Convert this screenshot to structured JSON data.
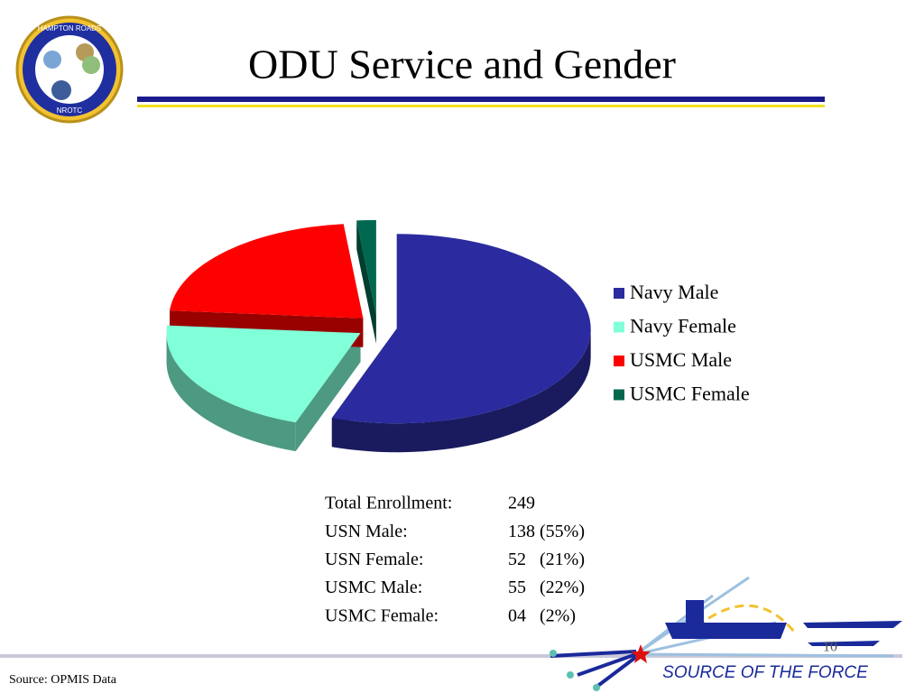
{
  "title": "ODU Service and Gender",
  "logo": {
    "top": "HAMPTON ROADS",
    "bottom": "NROTC"
  },
  "chart_data": {
    "type": "pie",
    "categories": [
      "Navy Male",
      "Navy Female",
      "USMC Male",
      "USMC Female"
    ],
    "values": [
      138,
      52,
      55,
      4
    ],
    "colors": [
      "#2b2b9f",
      "#80ffd8",
      "#ff0000",
      "#00684f"
    ],
    "legend": "right"
  },
  "stats": {
    "rows": [
      [
        "Total Enrollment:",
        "249"
      ],
      [
        "USN Male:",
        "138 (55%)"
      ],
      [
        "USN Female:",
        "52   (21%)"
      ],
      [
        "USMC Male:",
        "55   (22%)"
      ],
      [
        "USMC Female:",
        "04   (2%)"
      ]
    ]
  },
  "source": "Source: OPMIS Data",
  "footer": {
    "tagline": "SOURCE OF THE FORCE",
    "page": "10"
  }
}
